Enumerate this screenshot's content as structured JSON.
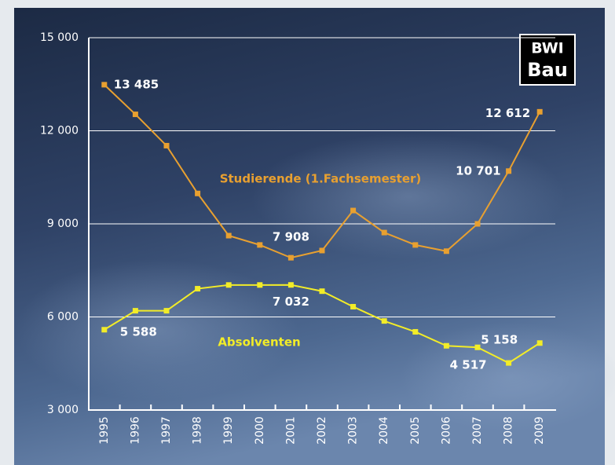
{
  "chart_data": {
    "type": "line",
    "categories": [
      "1995",
      "1996",
      "1997",
      "1998",
      "1999",
      "2000",
      "2001",
      "2002",
      "2003",
      "2004",
      "2005",
      "2006",
      "2007",
      "2008",
      "2009"
    ],
    "series": [
      {
        "name": "Studierende (1.Fachsemester)",
        "color": "#e8a030",
        "values": [
          13485,
          12530,
          11520,
          9980,
          8620,
          8320,
          7908,
          8140,
          9430,
          8720,
          8320,
          8120,
          9000,
          10701,
          12612
        ],
        "value_labels": [
          "13 485",
          null,
          null,
          null,
          null,
          null,
          "7 908",
          null,
          null,
          null,
          null,
          null,
          null,
          "10 701",
          "12 612"
        ]
      },
      {
        "name": "Absolventen",
        "color": "#f2ec28",
        "values": [
          5588,
          6200,
          6200,
          6910,
          7030,
          7030,
          7032,
          6830,
          6330,
          5870,
          5520,
          5070,
          5020,
          4517,
          5158
        ],
        "value_labels": [
          "5 588",
          null,
          null,
          null,
          null,
          null,
          "7 032",
          null,
          null,
          null,
          null,
          null,
          null,
          "4 517",
          "5 158"
        ]
      }
    ],
    "ylim": [
      3000,
      15000
    ],
    "yticks": [
      {
        "value": 3000,
        "label": "3 000"
      },
      {
        "value": 6000,
        "label": "6 000"
      },
      {
        "value": 9000,
        "label": "9 000"
      },
      {
        "value": 12000,
        "label": "12 000"
      },
      {
        "value": 15000,
        "label": "15 000"
      }
    ],
    "grid": true
  },
  "logo": {
    "line1": "BWI",
    "line2": "Bau"
  }
}
